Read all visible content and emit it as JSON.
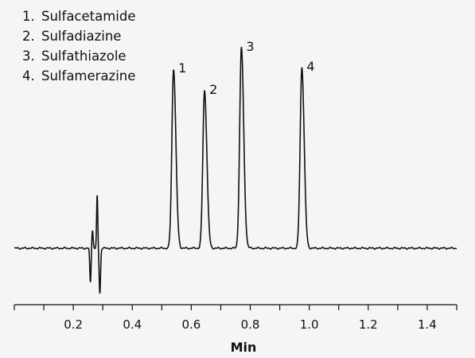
{
  "chart_data": {
    "type": "line",
    "xlabel": "Min",
    "xlim": [
      0.0,
      1.5
    ],
    "x_ticks": [
      0.2,
      0.4,
      0.6,
      0.8,
      1.0,
      1.2,
      1.4
    ],
    "x_tick_labels": [
      "0.2",
      "0.4",
      "0.6",
      "0.8",
      "1.0",
      "1.2",
      "1.4"
    ],
    "ylim": [
      -0.35,
      1.12
    ],
    "baseline": 0,
    "grid": false,
    "legend_placement": "top-left",
    "legend": [
      {
        "num": "1.",
        "name": "Sulfacetamide"
      },
      {
        "num": "2.",
        "name": "Sulfadiazine"
      },
      {
        "num": "3.",
        "name": "Sulfathiazole"
      },
      {
        "num": "4.",
        "name": "Sulfamerazine"
      }
    ],
    "peaks": [
      {
        "label": "1",
        "x": 0.54,
        "height": 1.0
      },
      {
        "label": "2",
        "x": 0.645,
        "height": 0.88
      },
      {
        "label": "3",
        "x": 0.77,
        "height": 1.12
      },
      {
        "label": "4",
        "x": 0.975,
        "height": 1.01
      }
    ],
    "solvent_front_x": 0.27,
    "line_color": "#111111"
  }
}
